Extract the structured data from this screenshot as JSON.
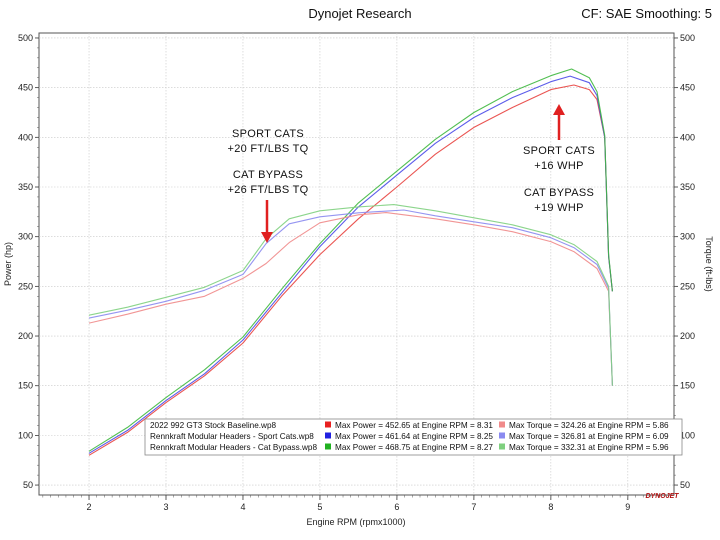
{
  "header": {
    "title": "Dynojet Research",
    "right": "CF: SAE Smoothing: 5"
  },
  "chart_data": {
    "type": "line",
    "xlabel": "Engine RPM (rpmx1000)",
    "ylabel_left": "Power (hp)",
    "ylabel_right": "Torque (ft-lbs)",
    "xlim": [
      1.35,
      9.6
    ],
    "ylim": [
      40,
      505
    ],
    "xticks": [
      2,
      3,
      4,
      5,
      6,
      7,
      8,
      9
    ],
    "yticks": [
      50,
      100,
      150,
      200,
      250,
      300,
      350,
      400,
      450,
      500
    ],
    "grid": true,
    "series": [
      {
        "name": "2022 992 GT3 Stock Baseline.wp8",
        "metric": "power",
        "color": "#e8433f",
        "x": [
          2.0,
          2.5,
          3.0,
          3.5,
          4.0,
          4.5,
          5.0,
          5.5,
          6.0,
          6.5,
          7.0,
          7.5,
          8.0,
          8.3,
          8.5,
          8.6,
          8.7,
          8.75,
          8.8
        ],
        "y": [
          80,
          103,
          133,
          160,
          193,
          240,
          282,
          318,
          350,
          383,
          410,
          430,
          448,
          452.65,
          448,
          438,
          400,
          280,
          245
        ]
      },
      {
        "name": "Rennkraft Modular Headers - Sport Cats.wp8",
        "metric": "power",
        "color": "#4a4ae8",
        "x": [
          2.0,
          2.5,
          3.0,
          3.5,
          4.0,
          4.5,
          5.0,
          5.5,
          6.0,
          6.5,
          7.0,
          7.5,
          8.0,
          8.25,
          8.5,
          8.6,
          8.7,
          8.75,
          8.8
        ],
        "y": [
          82,
          105,
          135,
          162,
          196,
          243,
          290,
          330,
          362,
          394,
          420,
          440,
          456,
          461.64,
          455,
          442,
          400,
          280,
          245
        ]
      },
      {
        "name": "Rennkraft Modular Headers - Cat Bypass.wp8",
        "metric": "power",
        "color": "#3fb83f",
        "x": [
          2.0,
          2.5,
          3.0,
          3.5,
          4.0,
          4.5,
          5.0,
          5.5,
          6.0,
          6.5,
          7.0,
          7.5,
          8.0,
          8.27,
          8.5,
          8.6,
          8.7,
          8.75,
          8.8
        ],
        "y": [
          84,
          108,
          138,
          166,
          199,
          247,
          293,
          334,
          366,
          398,
          425,
          446,
          462,
          468.75,
          460,
          446,
          402,
          282,
          245
        ]
      },
      {
        "name": "2022 992 GT3 Stock Baseline.wp8",
        "metric": "torque",
        "color": "#f08a8a",
        "x": [
          2.0,
          2.5,
          3.0,
          3.5,
          4.0,
          4.3,
          4.6,
          5.0,
          5.5,
          5.86,
          6.5,
          7.0,
          7.5,
          8.0,
          8.3,
          8.6,
          8.75,
          8.8
        ],
        "y": [
          213,
          222,
          232,
          240,
          258,
          273,
          294,
          314,
          322,
          324.26,
          318,
          312,
          305,
          295,
          285,
          268,
          245,
          150
        ]
      },
      {
        "name": "Rennkraft Modular Headers - Sport Cats.wp8",
        "metric": "torque",
        "color": "#8a8af0",
        "x": [
          2.0,
          2.5,
          3.0,
          3.5,
          4.0,
          4.3,
          4.6,
          5.0,
          5.5,
          6.09,
          6.5,
          7.0,
          7.5,
          8.0,
          8.3,
          8.6,
          8.75,
          8.8
        ],
        "y": [
          218,
          226,
          235,
          246,
          262,
          293,
          313,
          320,
          324,
          326.81,
          321,
          315,
          309,
          299,
          289,
          272,
          248,
          150
        ]
      },
      {
        "name": "Rennkraft Modular Headers - Cat Bypass.wp8",
        "metric": "torque",
        "color": "#7fd07f",
        "x": [
          2.0,
          2.5,
          3.0,
          3.5,
          4.0,
          4.3,
          4.6,
          5.0,
          5.5,
          5.96,
          6.5,
          7.0,
          7.5,
          8.0,
          8.3,
          8.6,
          8.75,
          8.8
        ],
        "y": [
          221,
          229,
          239,
          249,
          266,
          298,
          318,
          326,
          330,
          332.31,
          326,
          319,
          312,
          302,
          292,
          275,
          250,
          150
        ]
      }
    ],
    "legend": {
      "position": "bottom-right",
      "rows": [
        {
          "file": "2022 992 GT3 Stock Baseline.wp8",
          "power_color": "#e82020",
          "torque_color": "#f08a8a",
          "power_text": "Max Power = 452.65 at Engine RPM = 8.31",
          "torque_text": "Max Torque = 324.26 at Engine RPM = 5.86"
        },
        {
          "file": "Rennkraft Modular Headers - Sport Cats.wp8",
          "power_color": "#2020e0",
          "torque_color": "#8a8af0",
          "power_text": "Max Power = 461.64 at Engine RPM = 8.25",
          "torque_text": "Max Torque = 326.81 at Engine RPM = 6.09"
        },
        {
          "file": "Rennkraft Modular Headers - Cat Bypass.wp8",
          "power_color": "#20b020",
          "torque_color": "#7fd07f",
          "power_text": "Max Power = 468.75 at Engine RPM = 8.27",
          "torque_text": "Max Torque = 332.31 at Engine RPM = 5.96"
        }
      ]
    },
    "annotations": {
      "torque_sport": [
        "SPORT CATS",
        "+20 FT/LBS TQ"
      ],
      "torque_bypass": [
        "CAT BYPASS",
        "+26 FT/LBS TQ"
      ],
      "power_sport": [
        "SPORT CATS",
        "+16 WHP"
      ],
      "power_bypass": [
        "CAT BYPASS",
        "+19 WHP"
      ],
      "arrow_color": "#e02020"
    },
    "logo_text": "DYNOJET"
  }
}
